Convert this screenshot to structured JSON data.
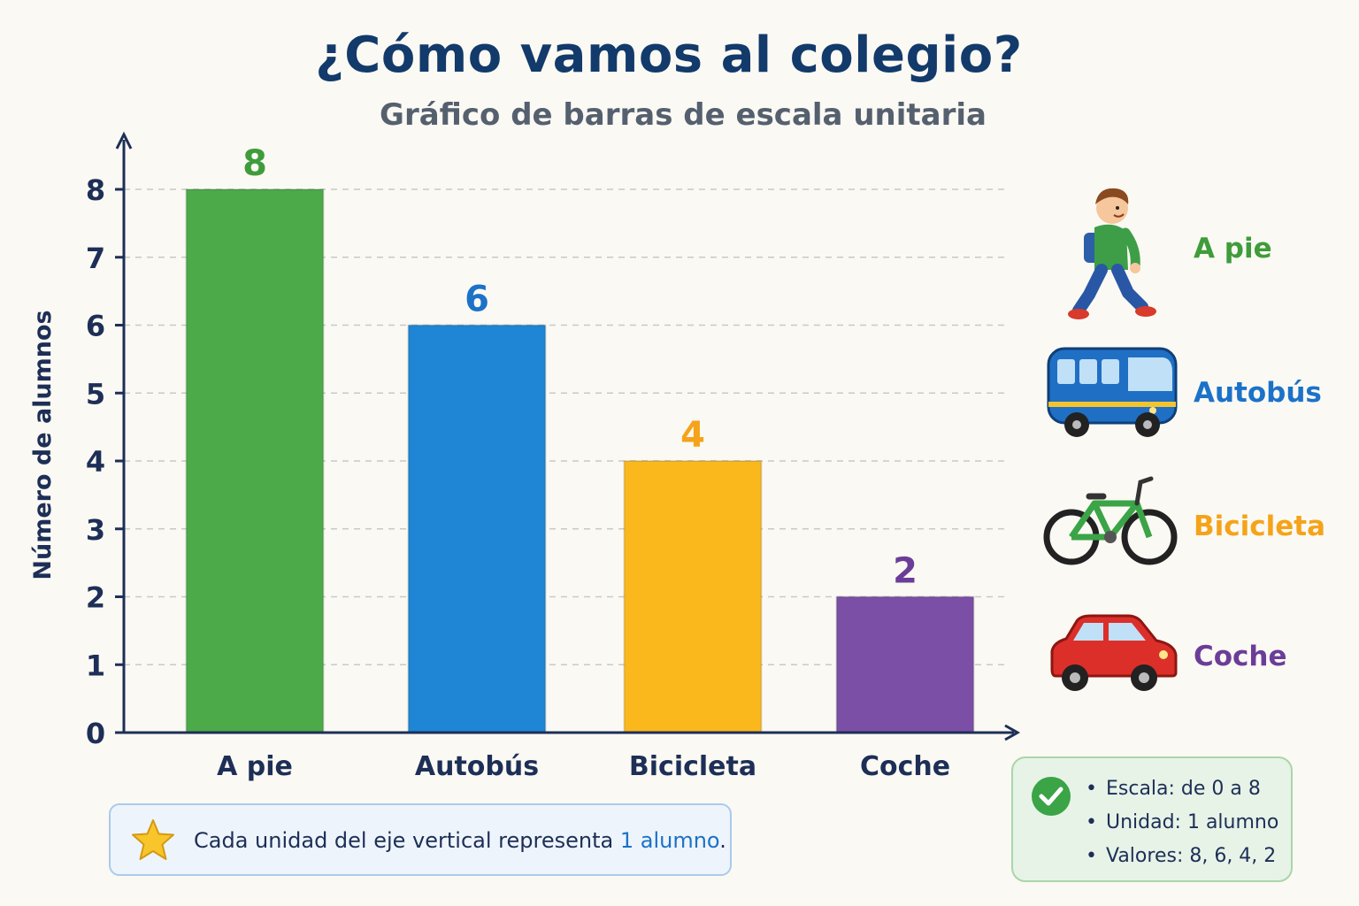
{
  "title": "¿Cómo vamos al colegio?",
  "subtitle": "Gráfico de barras de escala unitaria",
  "chart_data": {
    "type": "bar",
    "title": "¿Cómo vamos al colegio?",
    "subtitle": "Gráfico de barras de escala unitaria",
    "categories": [
      "A pie",
      "Autobús",
      "Bicicleta",
      "Coche"
    ],
    "values": [
      8,
      6,
      4,
      2
    ],
    "colors": [
      "#4caa48",
      "#1e86d4",
      "#fbb81c",
      "#7b4fa6"
    ],
    "label_colors": [
      "#3f9c3b",
      "#1b72c8",
      "#f5a31a",
      "#6b3d98"
    ],
    "xlabel": "",
    "ylabel": "Número de alumnos",
    "ylim": [
      0,
      8
    ],
    "yticks": [
      "0",
      "1",
      "2",
      "3",
      "4",
      "5",
      "6",
      "7",
      "8"
    ],
    "grid": true,
    "legend_position": "right"
  },
  "legend": [
    {
      "label": "A pie",
      "icon": "walking-child-icon",
      "color": "#3f9c3b"
    },
    {
      "label": "Autobús",
      "icon": "bus-icon",
      "color": "#1b72c8"
    },
    {
      "label": "Bicicleta",
      "icon": "bicycle-icon",
      "color": "#f5a31a"
    },
    {
      "label": "Coche",
      "icon": "car-icon",
      "color": "#6b3d98"
    }
  ],
  "note": {
    "icon": "star-icon",
    "text_before": "Cada unidad del eje vertical representa ",
    "highlight": "1 alumno",
    "text_after": "."
  },
  "info": {
    "icon": "check-icon",
    "items": [
      "Escala: de 0 a 8",
      "Unidad: 1 alumno",
      "Valores: 8, 6, 4, 2"
    ]
  }
}
